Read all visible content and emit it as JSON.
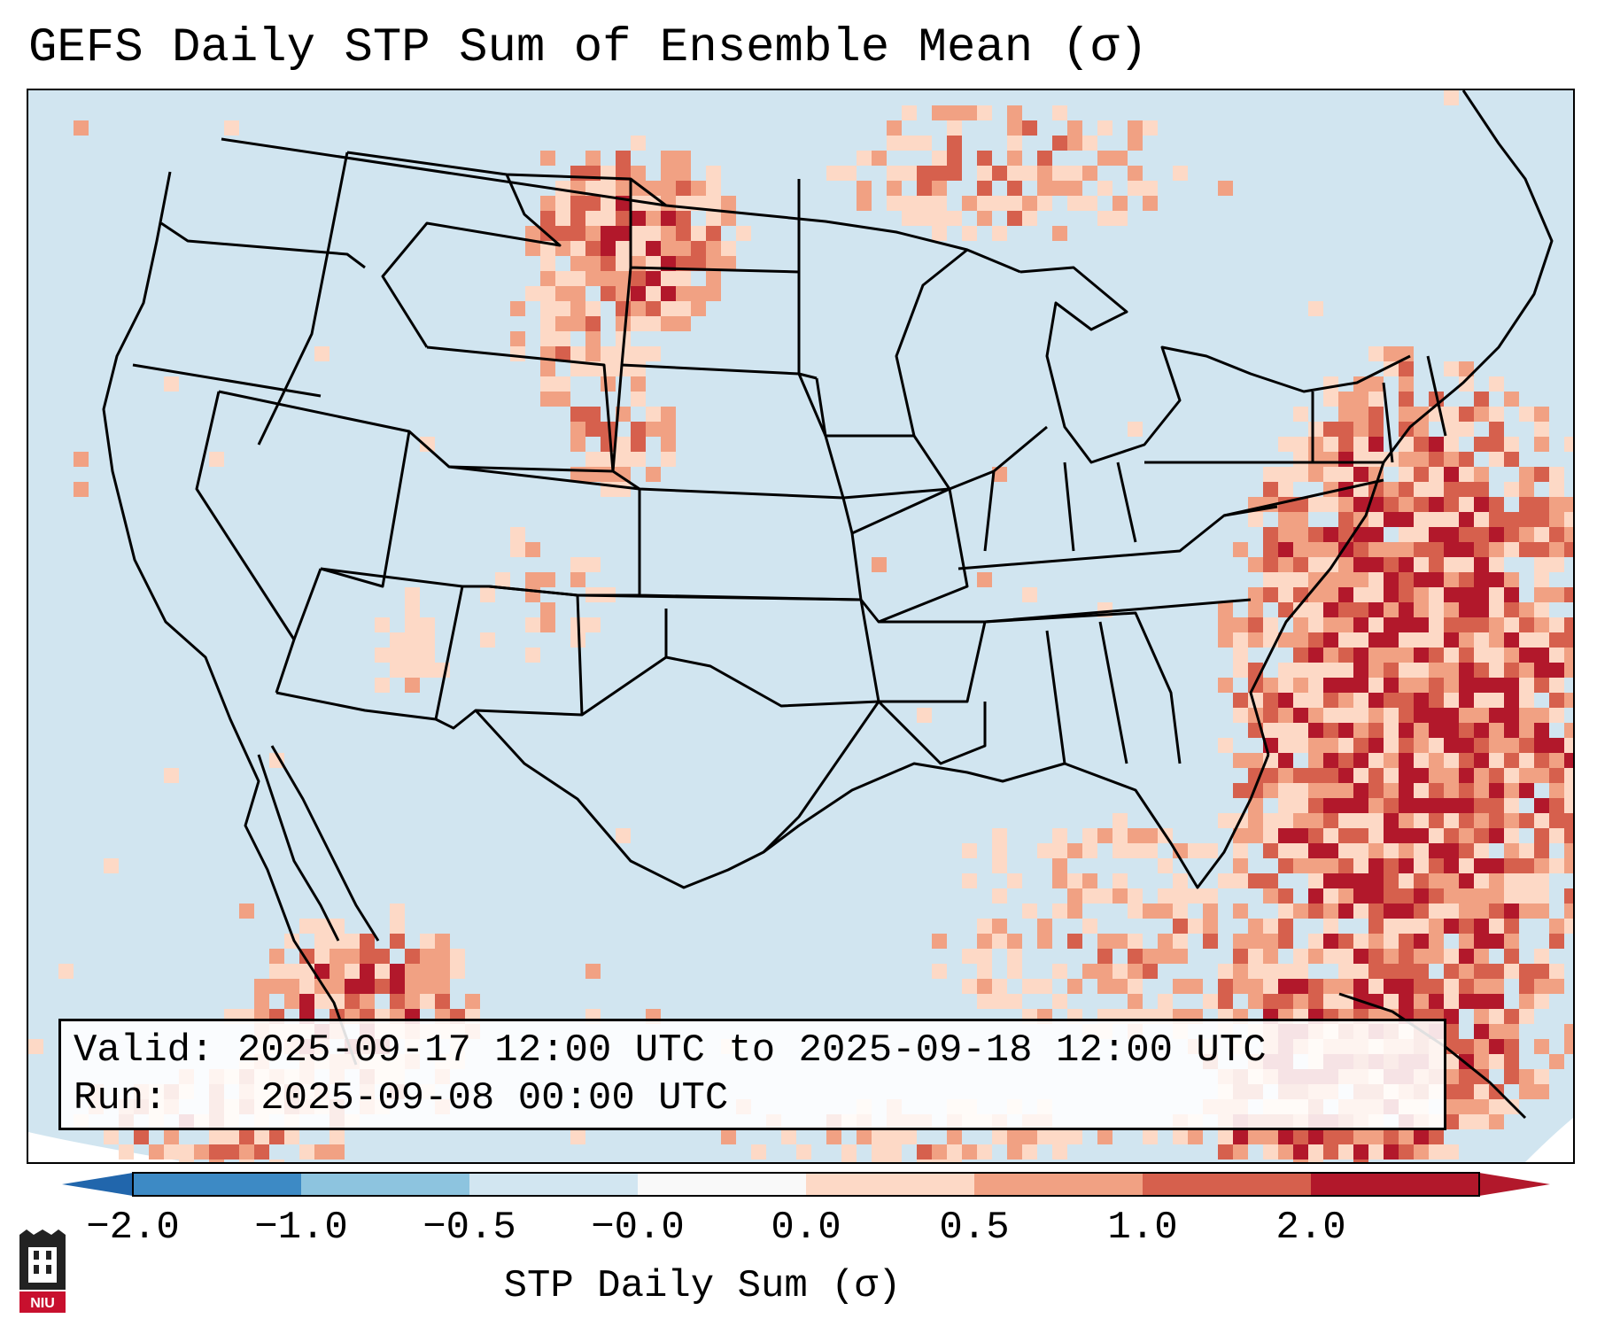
{
  "title": "GEFS Daily STP Sum of Ensemble Mean (σ)",
  "info": {
    "valid_label": "Valid:",
    "valid_value": "2025-09-17 12:00 UTC to 2025-09-18 12:00 UTC",
    "run_label": "Run:",
    "run_value": "2025-09-08 00:00 UTC"
  },
  "colorbar": {
    "label": "STP Daily Sum (σ)",
    "ticks": [
      "−2.0",
      "−1.0",
      "−0.5",
      "−0.0",
      "0.0",
      "0.5",
      "1.0",
      "2.0"
    ],
    "colors": [
      "#3d8ac5",
      "#8dc4df",
      "#d2e6f1",
      "#f9f9f9",
      "#fdd9c6",
      "#f1a183",
      "#d6604d",
      "#b2182b"
    ],
    "extend_low_color": "#2166ac",
    "extend_high_color": "#b2182b"
  },
  "map": {
    "ocean_color": "#d1e5f0",
    "land_color": "#d1e5f0",
    "border_color": "#000000"
  },
  "logo": {
    "text": "NIU",
    "icon": "niu-logo-icon"
  }
}
